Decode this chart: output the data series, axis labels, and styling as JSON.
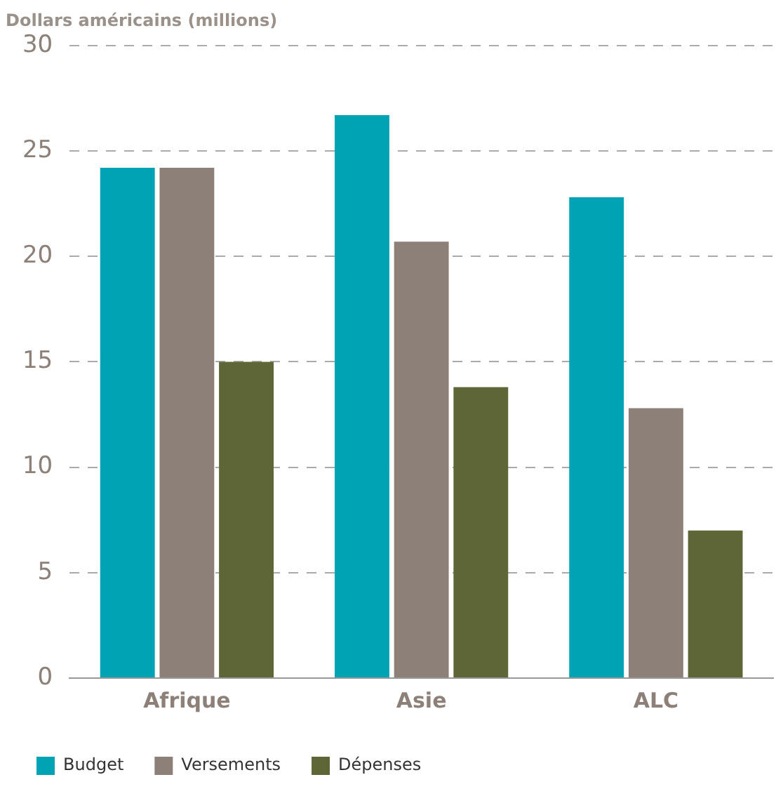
{
  "chart_data": {
    "type": "bar",
    "ylabel": "Dollars américains (millions)",
    "categories": [
      "Afrique",
      "Asie",
      "ALC"
    ],
    "series": [
      {
        "name": "Budget",
        "color": "#00a3b4",
        "values": [
          24.2,
          26.7,
          22.8
        ]
      },
      {
        "name": "Versements",
        "color": "#8c8078",
        "values": [
          24.2,
          20.7,
          12.8
        ]
      },
      {
        "name": "Dépenses",
        "color": "#5e6638",
        "values": [
          15.0,
          13.8,
          7.0
        ]
      }
    ],
    "ylim": [
      0,
      30
    ],
    "yticks": [
      0,
      5,
      10,
      15,
      20,
      25,
      30
    ],
    "grid": "y",
    "legend": "bottom left"
  }
}
